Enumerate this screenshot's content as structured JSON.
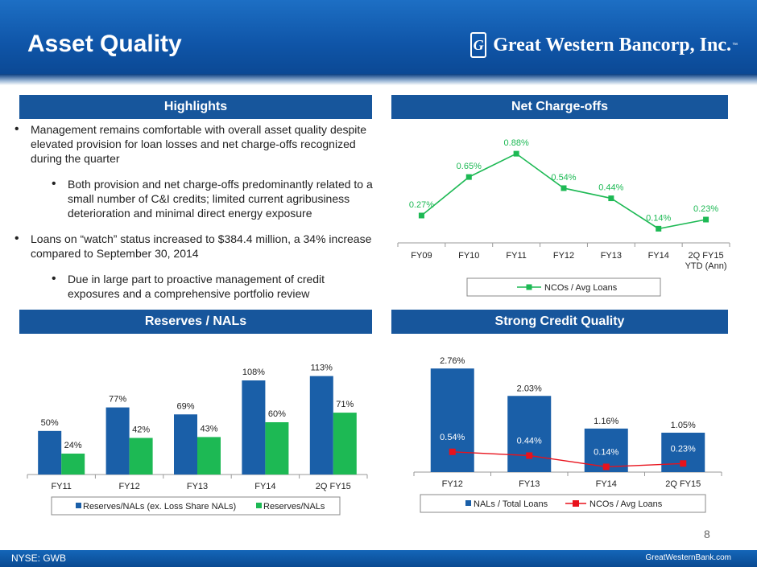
{
  "header": {
    "title": "Asset Quality",
    "logo_text": "Great Western Bancorp, Inc.",
    "logo_mark": "G",
    "logo_tm": "™"
  },
  "sections": {
    "highlights": "Highlights",
    "net_chargeoffs": "Net Charge-offs",
    "reserves_nals": "Reserves / NALs",
    "strong_credit": "Strong Credit Quality"
  },
  "bullets": [
    {
      "level": 1,
      "text": "Management remains comfortable with overall asset quality despite elevated provision for loan losses and net charge-offs recognized during the quarter"
    },
    {
      "level": 2,
      "text": "Both provision and net charge-offs predominantly related to a small number of C&I credits; limited current agribusiness deterioration and minimal direct energy exposure"
    },
    {
      "level": 1,
      "text": "Loans on “watch” status increased to $384.4 million, a 34% increase compared to September 30, 2014"
    },
    {
      "level": 2,
      "text": "Due in large part to proactive management of credit exposures and a comprehensive portfolio review"
    }
  ],
  "colors": {
    "header_blue": "#0f55a8",
    "bar_blue": "#17569c",
    "green": "#1db954",
    "series_blue": "#1a5fa8",
    "red": "#e8121c"
  },
  "chart_data": [
    {
      "type": "line",
      "categories": [
        "FY09",
        "FY10",
        "FY11",
        "FY12",
        "FY13",
        "FY14",
        "2Q FY15 YTD (Ann)"
      ],
      "series": [
        {
          "name": "NCOs / Avg Loans",
          "values": [
            0.27,
            0.65,
            0.88,
            0.54,
            0.44,
            0.14,
            0.23
          ]
        }
      ],
      "labels": [
        "0.27%",
        "0.65%",
        "0.88%",
        "0.54%",
        "0.44%",
        "0.14%",
        "0.23%"
      ],
      "legend": "bottom"
    },
    {
      "type": "bar",
      "categories": [
        "FY11",
        "FY12",
        "FY13",
        "FY14",
        "2Q FY15"
      ],
      "series": [
        {
          "name": "Reserves/NALs (ex. Loss Share NALs)",
          "values": [
            50,
            77,
            69,
            108,
            113
          ],
          "labels": [
            "50%",
            "77%",
            "69%",
            "108%",
            "113%"
          ]
        },
        {
          "name": "Reserves/NALs",
          "values": [
            24,
            42,
            43,
            60,
            71
          ],
          "labels": [
            "24%",
            "42%",
            "43%",
            "60%",
            "71%"
          ]
        }
      ],
      "legend": "bottom"
    },
    {
      "type": "bar",
      "categories": [
        "FY12",
        "FY13",
        "FY14",
        "2Q FY15"
      ],
      "series": [
        {
          "name": "NALs / Total Loans",
          "values": [
            2.76,
            2.03,
            1.16,
            1.05
          ],
          "labels": [
            "2.76%",
            "2.03%",
            "1.16%",
            "1.05%"
          ]
        },
        {
          "name": "NCOs / Avg Loans",
          "values": [
            0.54,
            0.44,
            0.14,
            0.23
          ],
          "labels": [
            "0.54%",
            "0.44%",
            "0.14%",
            "0.23%"
          ]
        }
      ],
      "legend": "bottom"
    }
  ],
  "page_number": "8",
  "footer": {
    "left": "NYSE: GWB",
    "right": "GreatWesternBank.com"
  }
}
